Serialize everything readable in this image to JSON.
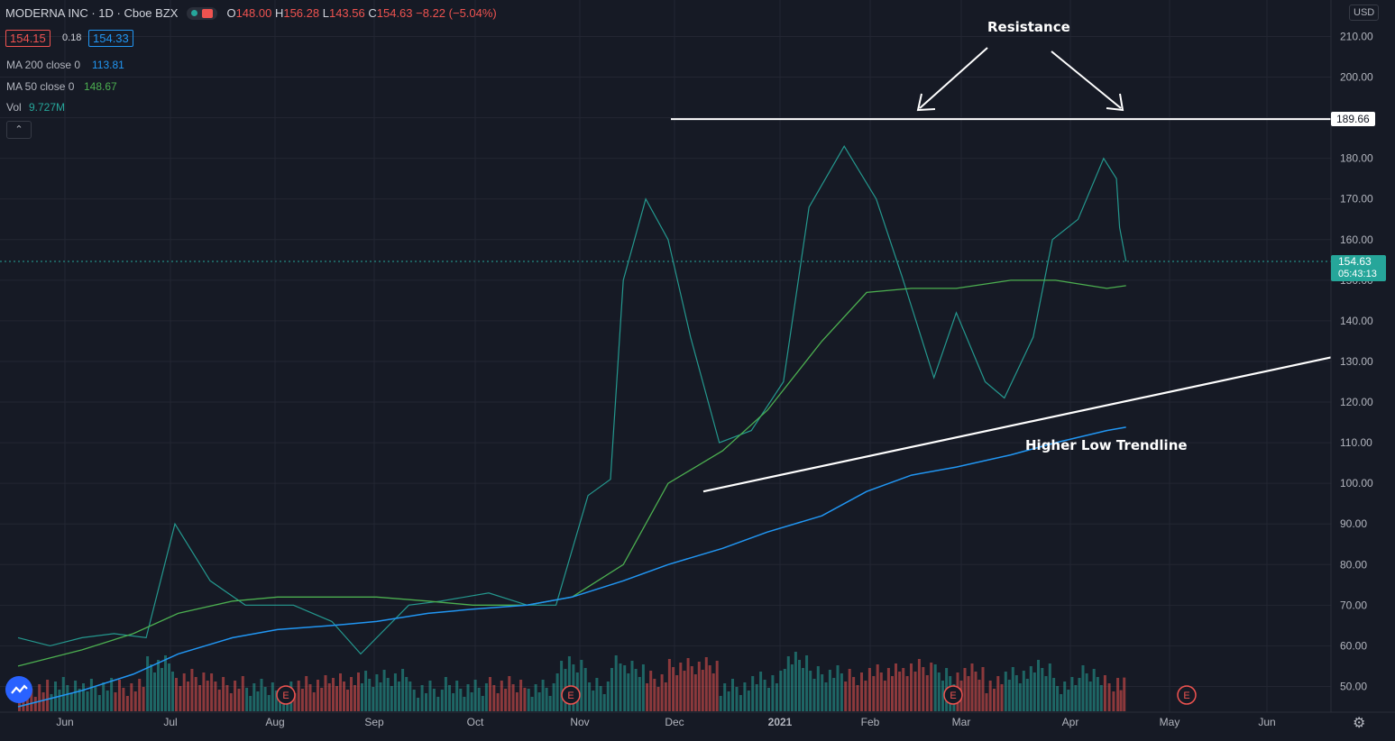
{
  "header": {
    "symbol": "MODERNA INC · 1D · Cboe BZX",
    "open_label": "O",
    "open": "148.00",
    "high_label": "H",
    "high": "156.28",
    "low_label": "L",
    "low": "143.56",
    "close_label": "C",
    "close": "154.63",
    "change": "−8.22 (−5.04%)"
  },
  "quote": {
    "bid": "154.15",
    "spread": "0.18",
    "ask": "154.33"
  },
  "indicators": {
    "ma200_label": "MA 200 close 0",
    "ma200_value": "113.81",
    "ma50_label": "MA 50 close 0",
    "ma50_value": "148.67",
    "vol_label": "Vol",
    "vol_value": "9.727M"
  },
  "collapse_icon": "chevron-up-icon",
  "currency_button": "USD",
  "resistance_label": "189.66",
  "price_badge": {
    "price": "154.63",
    "countdown": "05:43:13"
  },
  "annotations": {
    "resistance": "Resistance",
    "trendline": "Higher Low Trendline"
  },
  "earnings_marker": "E",
  "colors": {
    "up": "#26a69a",
    "down": "#ef5350",
    "ma50": "#4caf50",
    "ma200": "#2196f3",
    "bg": "#161a25"
  },
  "chart_data": {
    "type": "line",
    "title": "",
    "y_ticks": [
      "210.00",
      "200.00",
      "190.00",
      "180.00",
      "170.00",
      "160.00",
      "150.00",
      "140.00",
      "130.00",
      "120.00",
      "110.00",
      "100.00",
      "90.00",
      "80.00",
      "70.00",
      "60.00",
      "50.00"
    ],
    "ylim": [
      45,
      214
    ],
    "x_ticks": [
      "Jun",
      "Jul",
      "Aug",
      "Sep",
      "Oct",
      "Nov",
      "Dec",
      "2021",
      "Feb",
      "Mar",
      "Apr",
      "May",
      "Jun"
    ],
    "series": [
      {
        "name": "MA 50 close 0",
        "values": [
          [
            "2020-05-26",
            55
          ],
          [
            "2020-06-15",
            59
          ],
          [
            "2020-07-01",
            63
          ],
          [
            "2020-07-15",
            68
          ],
          [
            "2020-08-01",
            71
          ],
          [
            "2020-08-15",
            72
          ],
          [
            "2020-09-01",
            72
          ],
          [
            "2020-09-15",
            72
          ],
          [
            "2020-10-01",
            71
          ],
          [
            "2020-10-15",
            70
          ],
          [
            "2020-11-01",
            70
          ],
          [
            "2020-11-15",
            72
          ],
          [
            "2020-12-01",
            80
          ],
          [
            "2020-12-15",
            100
          ],
          [
            "2021-01-01",
            108
          ],
          [
            "2021-01-15",
            118
          ],
          [
            "2021-02-01",
            135
          ],
          [
            "2021-02-15",
            147
          ],
          [
            "2021-03-01",
            148
          ],
          [
            "2021-03-15",
            148
          ],
          [
            "2021-04-01",
            150
          ],
          [
            "2021-04-15",
            150
          ],
          [
            "2021-05-01",
            148
          ],
          [
            "2021-05-07",
            148.67
          ]
        ]
      },
      {
        "name": "MA 200 close 0",
        "values": [
          [
            "2020-05-26",
            45
          ],
          [
            "2020-06-15",
            49
          ],
          [
            "2020-07-01",
            53
          ],
          [
            "2020-07-15",
            58
          ],
          [
            "2020-08-01",
            62
          ],
          [
            "2020-08-15",
            64
          ],
          [
            "2020-09-01",
            65
          ],
          [
            "2020-09-15",
            66
          ],
          [
            "2020-10-01",
            68
          ],
          [
            "2020-10-15",
            69
          ],
          [
            "2020-11-01",
            70
          ],
          [
            "2020-11-15",
            72
          ],
          [
            "2020-12-01",
            76
          ],
          [
            "2020-12-15",
            80
          ],
          [
            "2021-01-01",
            84
          ],
          [
            "2021-01-15",
            88
          ],
          [
            "2021-02-01",
            92
          ],
          [
            "2021-02-15",
            98
          ],
          [
            "2021-03-01",
            102
          ],
          [
            "2021-03-15",
            104
          ],
          [
            "2021-04-01",
            107
          ],
          [
            "2021-04-15",
            110
          ],
          [
            "2021-05-01",
            113
          ],
          [
            "2021-05-07",
            113.81
          ]
        ]
      }
    ],
    "close_path": [
      [
        "2020-05-26",
        62
      ],
      [
        "2020-06-05",
        60
      ],
      [
        "2020-06-15",
        62
      ],
      [
        "2020-06-25",
        63
      ],
      [
        "2020-07-05",
        62
      ],
      [
        "2020-07-14",
        90
      ],
      [
        "2020-07-25",
        76
      ],
      [
        "2020-08-05",
        70
      ],
      [
        "2020-08-20",
        70
      ],
      [
        "2020-09-01",
        66
      ],
      [
        "2020-09-10",
        58
      ],
      [
        "2020-09-25",
        70
      ],
      [
        "2020-10-05",
        71
      ],
      [
        "2020-10-20",
        73
      ],
      [
        "2020-11-01",
        70
      ],
      [
        "2020-11-10",
        70
      ],
      [
        "2020-11-20",
        97
      ],
      [
        "2020-11-27",
        101
      ],
      [
        "2020-12-01",
        150
      ],
      [
        "2020-12-08",
        170
      ],
      [
        "2020-12-15",
        160
      ],
      [
        "2020-12-22",
        136
      ],
      [
        "2020-12-31",
        110
      ],
      [
        "2021-01-10",
        113
      ],
      [
        "2021-01-20",
        125
      ],
      [
        "2021-01-28",
        168
      ],
      [
        "2021-02-08",
        183
      ],
      [
        "2021-02-18",
        170
      ],
      [
        "2021-02-26",
        151
      ],
      [
        "2021-03-08",
        126
      ],
      [
        "2021-03-15",
        142
      ],
      [
        "2021-03-24",
        125
      ],
      [
        "2021-03-30",
        121
      ],
      [
        "2021-04-08",
        136
      ],
      [
        "2021-04-14",
        160
      ],
      [
        "2021-04-22",
        165
      ],
      [
        "2021-04-30",
        180
      ],
      [
        "2021-05-04",
        175
      ],
      [
        "2021-05-05",
        163
      ],
      [
        "2021-05-07",
        154.63
      ]
    ],
    "resistance_level": 189.66,
    "trendline": [
      [
        "2020-12-08",
        98
      ],
      [
        "2021-05-31",
        131
      ]
    ]
  }
}
